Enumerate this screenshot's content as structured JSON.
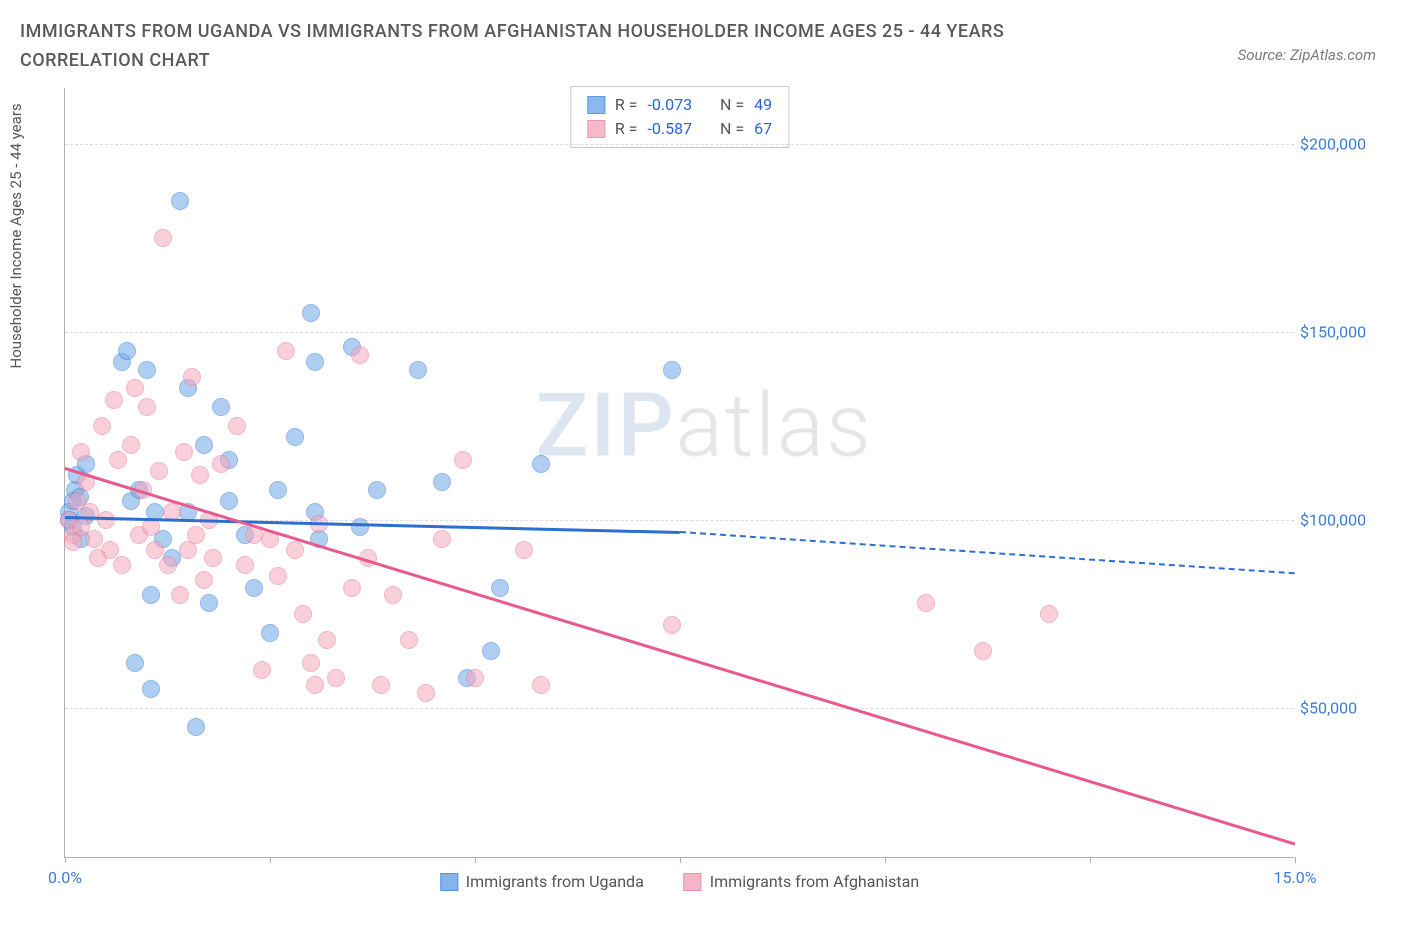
{
  "title": "IMMIGRANTS FROM UGANDA VS IMMIGRANTS FROM AFGHANISTAN HOUSEHOLDER INCOME AGES 25 - 44 YEARS CORRELATION CHART",
  "source": "Source: ZipAtlas.com",
  "y_axis_label": "Householder Income Ages 25 - 44 years",
  "watermark": {
    "zip": "ZIP",
    "atlas": "atlas"
  },
  "chart": {
    "type": "scatter",
    "xlim": [
      0,
      15
    ],
    "ylim": [
      10000,
      215000
    ],
    "x_ticks": [
      {
        "v": 0,
        "label": "0.0%"
      },
      {
        "v": 2.5,
        "label": ""
      },
      {
        "v": 5.0,
        "label": ""
      },
      {
        "v": 7.5,
        "label": ""
      },
      {
        "v": 10.0,
        "label": ""
      },
      {
        "v": 12.5,
        "label": ""
      },
      {
        "v": 15,
        "label": "15.0%"
      }
    ],
    "y_ticks": [
      {
        "v": 50000,
        "label": "$50,000"
      },
      {
        "v": 100000,
        "label": "$100,000"
      },
      {
        "v": 150000,
        "label": "$150,000"
      },
      {
        "v": 200000,
        "label": "$200,000"
      }
    ],
    "grid_color": "#dcdcdc",
    "background_color": "#ffffff",
    "point_radius": 9,
    "point_opacity": 0.55,
    "series": [
      {
        "name": "Immigrants from Uganda",
        "color": "#6fa8e8",
        "stroke": "#3b7dd8",
        "line_color": "#2c6fd1",
        "R": "-0.073",
        "N": "49",
        "trend": {
          "x1": 0,
          "y1": 101000,
          "x2": 7.5,
          "y2": 97000,
          "x2d": 15,
          "y2d": 86000
        },
        "points": [
          [
            0.05,
            102000
          ],
          [
            0.05,
            100000
          ],
          [
            0.1,
            105000
          ],
          [
            0.1,
            98000
          ],
          [
            0.12,
            108000
          ],
          [
            0.15,
            112000
          ],
          [
            0.18,
            106000
          ],
          [
            0.2,
            95000
          ],
          [
            0.25,
            115000
          ],
          [
            0.25,
            101000
          ],
          [
            0.7,
            142000
          ],
          [
            0.75,
            145000
          ],
          [
            0.8,
            105000
          ],
          [
            0.85,
            62000
          ],
          [
            0.9,
            108000
          ],
          [
            1.0,
            140000
          ],
          [
            1.05,
            55000
          ],
          [
            1.05,
            80000
          ],
          [
            1.1,
            102000
          ],
          [
            1.2,
            95000
          ],
          [
            1.3,
            90000
          ],
          [
            1.4,
            185000
          ],
          [
            1.5,
            135000
          ],
          [
            1.5,
            102000
          ],
          [
            1.6,
            45000
          ],
          [
            1.7,
            120000
          ],
          [
            1.75,
            78000
          ],
          [
            1.9,
            130000
          ],
          [
            2.0,
            116000
          ],
          [
            2.0,
            105000
          ],
          [
            2.2,
            96000
          ],
          [
            2.3,
            82000
          ],
          [
            2.5,
            70000
          ],
          [
            2.6,
            108000
          ],
          [
            2.8,
            122000
          ],
          [
            3.0,
            155000
          ],
          [
            3.05,
            142000
          ],
          [
            3.05,
            102000
          ],
          [
            3.1,
            95000
          ],
          [
            3.5,
            146000
          ],
          [
            3.6,
            98000
          ],
          [
            3.8,
            108000
          ],
          [
            4.3,
            140000
          ],
          [
            4.6,
            110000
          ],
          [
            5.2,
            65000
          ],
          [
            5.3,
            82000
          ],
          [
            5.8,
            115000
          ],
          [
            7.4,
            140000
          ],
          [
            4.9,
            58000
          ]
        ]
      },
      {
        "name": "Immigrants from Afghanistan",
        "color": "#f5a8bd",
        "stroke": "#e87ba0",
        "line_color": "#e85a8d",
        "R": "-0.587",
        "N": "67",
        "trend": {
          "x1": 0,
          "y1": 114000,
          "x2": 15,
          "y2": 14000
        },
        "points": [
          [
            0.05,
            100000
          ],
          [
            0.1,
            96000
          ],
          [
            0.1,
            94000
          ],
          [
            0.15,
            105000
          ],
          [
            0.2,
            98000
          ],
          [
            0.2,
            118000
          ],
          [
            0.25,
            110000
          ],
          [
            0.3,
            102000
          ],
          [
            0.35,
            95000
          ],
          [
            0.4,
            90000
          ],
          [
            0.45,
            125000
          ],
          [
            0.5,
            100000
          ],
          [
            0.55,
            92000
          ],
          [
            0.6,
            132000
          ],
          [
            0.65,
            116000
          ],
          [
            0.7,
            88000
          ],
          [
            0.8,
            120000
          ],
          [
            0.85,
            135000
          ],
          [
            0.9,
            96000
          ],
          [
            0.95,
            108000
          ],
          [
            1.0,
            130000
          ],
          [
            1.05,
            98000
          ],
          [
            1.1,
            92000
          ],
          [
            1.15,
            113000
          ],
          [
            1.2,
            175000
          ],
          [
            1.25,
            88000
          ],
          [
            1.3,
            102000
          ],
          [
            1.4,
            80000
          ],
          [
            1.45,
            118000
          ],
          [
            1.5,
            92000
          ],
          [
            1.55,
            138000
          ],
          [
            1.6,
            96000
          ],
          [
            1.65,
            112000
          ],
          [
            1.7,
            84000
          ],
          [
            1.75,
            100000
          ],
          [
            1.8,
            90000
          ],
          [
            1.9,
            115000
          ],
          [
            2.1,
            125000
          ],
          [
            2.2,
            88000
          ],
          [
            2.3,
            96000
          ],
          [
            2.4,
            60000
          ],
          [
            2.5,
            95000
          ],
          [
            2.6,
            85000
          ],
          [
            2.7,
            145000
          ],
          [
            2.8,
            92000
          ],
          [
            2.9,
            75000
          ],
          [
            3.0,
            62000
          ],
          [
            3.05,
            56000
          ],
          [
            3.1,
            99000
          ],
          [
            3.2,
            68000
          ],
          [
            3.3,
            58000
          ],
          [
            3.5,
            82000
          ],
          [
            3.6,
            144000
          ],
          [
            3.7,
            90000
          ],
          [
            3.85,
            56000
          ],
          [
            4.0,
            80000
          ],
          [
            4.2,
            68000
          ],
          [
            4.4,
            54000
          ],
          [
            4.6,
            95000
          ],
          [
            4.85,
            116000
          ],
          [
            5.0,
            58000
          ],
          [
            5.6,
            92000
          ],
          [
            5.8,
            56000
          ],
          [
            7.4,
            72000
          ],
          [
            10.5,
            78000
          ],
          [
            11.2,
            65000
          ],
          [
            12.0,
            75000
          ]
        ]
      }
    ]
  },
  "stats_labels": {
    "R": "R =",
    "N": "N ="
  }
}
